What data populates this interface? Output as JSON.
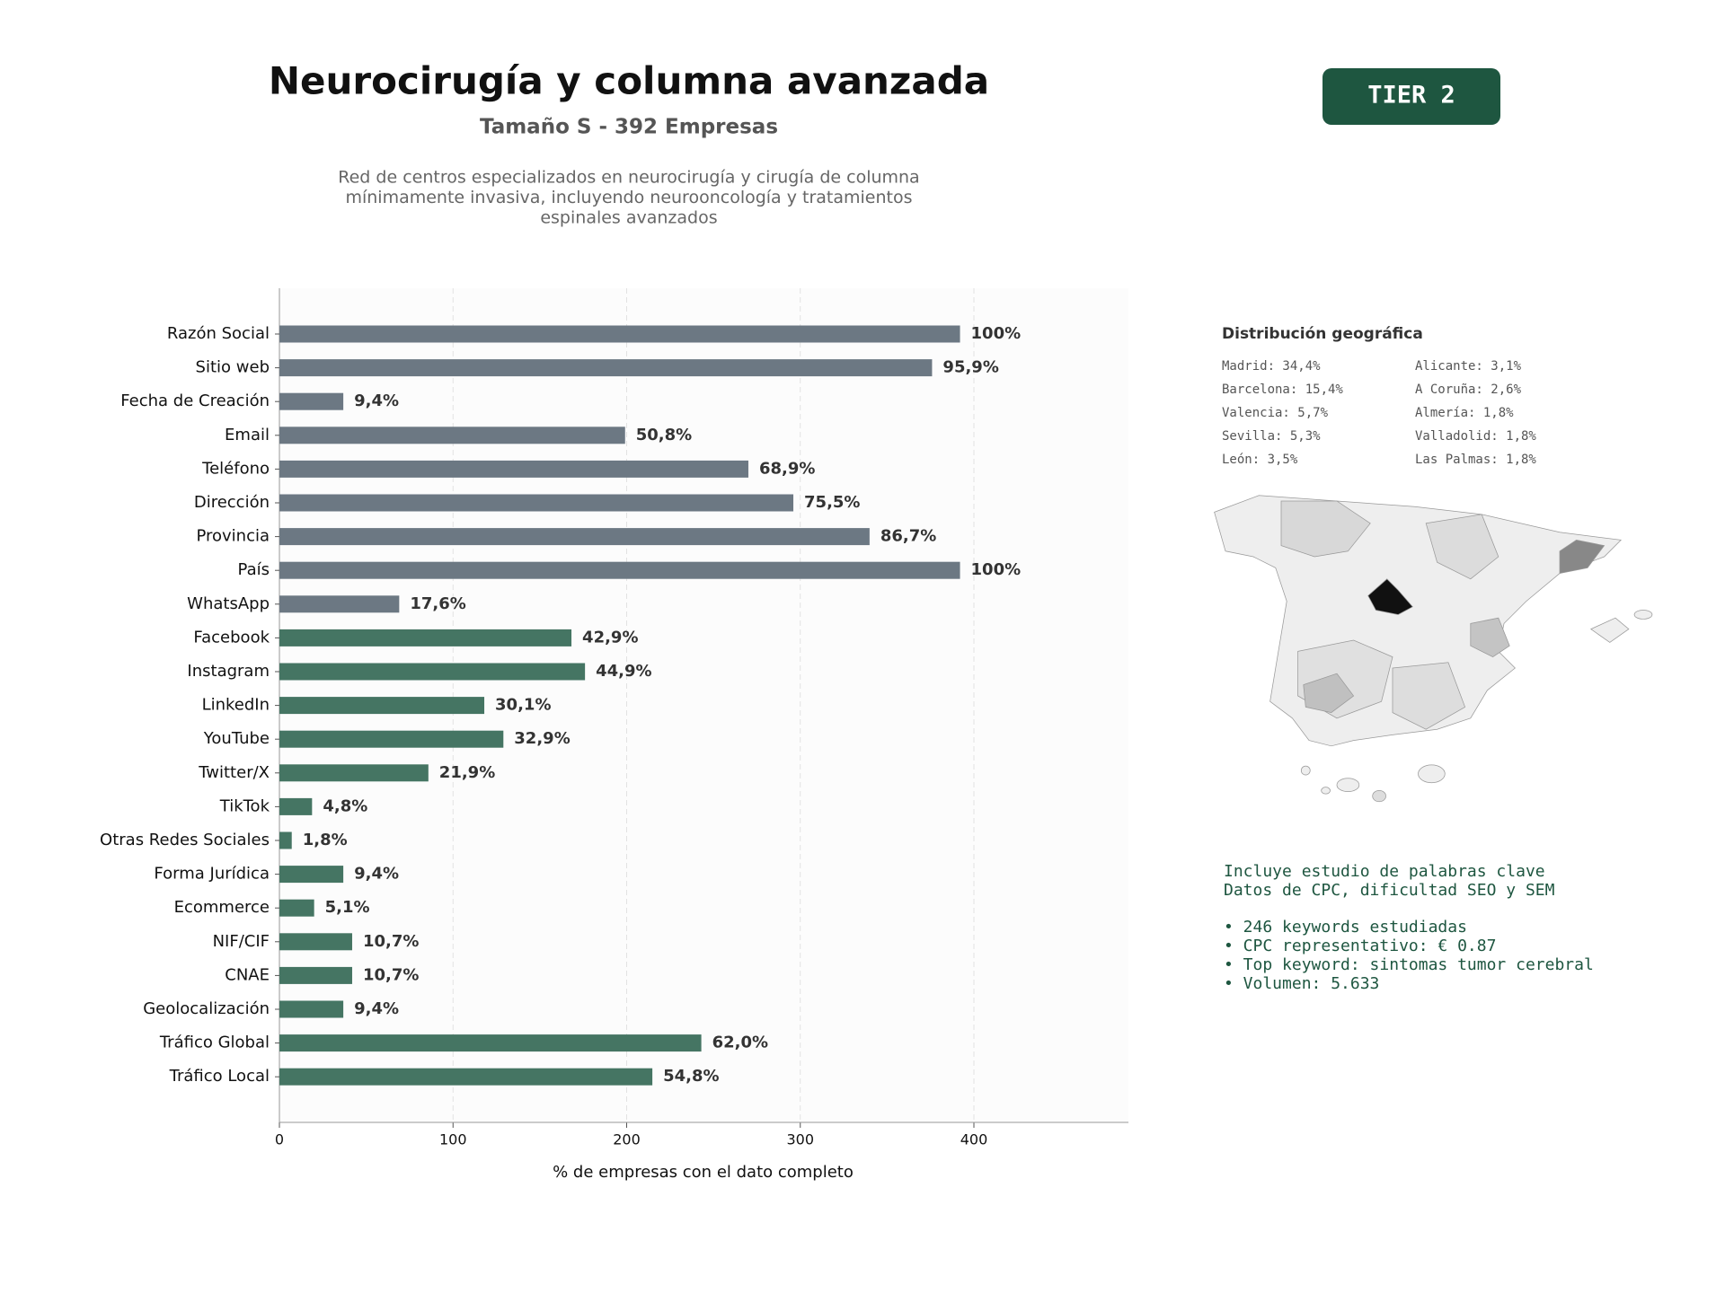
{
  "header": {
    "title": "Neurocirugía y columna avanzada",
    "subtitle": "Tamaño S - 392 Empresas",
    "description": [
      "Red de centros especializados en neurocirugía y cirugía de columna",
      "mínimamente invasiva, incluyendo neurooncología y tratamientos",
      "espinales avanzados"
    ]
  },
  "badge": "TIER 2",
  "chart_data": {
    "type": "bar",
    "orientation": "horizontal",
    "categories": [
      "Razón Social",
      "Sitio web",
      "Fecha de Creación",
      "Email",
      "Teléfono",
      "Dirección",
      "Provincia",
      "País",
      "WhatsApp",
      "Facebook",
      "Instagram",
      "LinkedIn",
      "YouTube",
      "Twitter/X",
      "TikTok",
      "Otras Redes Sociales",
      "Forma Jurídica",
      "Ecommerce",
      "NIF/CIF",
      "CNAE",
      "Geolocalización",
      "Tráfico Global",
      "Tráfico Local"
    ],
    "values": [
      392,
      375.9,
      36.8,
      199.1,
      270.1,
      296.0,
      339.9,
      392,
      69.0,
      168.2,
      176.0,
      118.0,
      129.0,
      85.8,
      18.8,
      7.1,
      36.8,
      20.0,
      41.9,
      41.9,
      36.8,
      243.0,
      214.8
    ],
    "value_labels": [
      "100%",
      "95,9%",
      "9,4%",
      "50,8%",
      "68,9%",
      "75,5%",
      "86,7%",
      "100%",
      "17,6%",
      "42,9%",
      "44,9%",
      "30,1%",
      "32,9%",
      "21,9%",
      "4,8%",
      "1,8%",
      "9,4%",
      "5,1%",
      "10,7%",
      "10,7%",
      "9,4%",
      "62,0%",
      "54,8%"
    ],
    "colors": [
      "#6c7883",
      "#6c7883",
      "#6c7883",
      "#6c7883",
      "#6c7883",
      "#6c7883",
      "#6c7883",
      "#6c7883",
      "#6c7883",
      "#457563",
      "#457563",
      "#457563",
      "#457563",
      "#457563",
      "#457563",
      "#457563",
      "#457563",
      "#457563",
      "#457563",
      "#457563",
      "#457563",
      "#457563",
      "#457563"
    ],
    "xlim": [
      0,
      489
    ],
    "xticks": [
      0,
      100,
      200,
      300,
      400
    ],
    "grid": true,
    "xlabel": "% de empresas con el dato completo"
  },
  "geo": {
    "title": "Distribución geográfica",
    "items": [
      "Madrid: 34,4%",
      "Barcelona: 15,4%",
      "Valencia: 5,7%",
      "Sevilla: 5,3%",
      "León: 3,5%",
      "Alicante: 3,1%",
      "A Coruña: 2,6%",
      "Almería: 1,8%",
      "Valladolid: 1,8%",
      "Las Palmas: 1,8%"
    ]
  },
  "keywords": {
    "intro": [
      "Incluye estudio de palabras clave",
      "Datos de CPC, dificultad SEO y SEM"
    ],
    "bullets": [
      "• 246 keywords estudiadas",
      "• CPC representativo: € 0.87",
      "• Top keyword: sintomas tumor cerebral",
      "• Volumen: 5.633"
    ]
  }
}
